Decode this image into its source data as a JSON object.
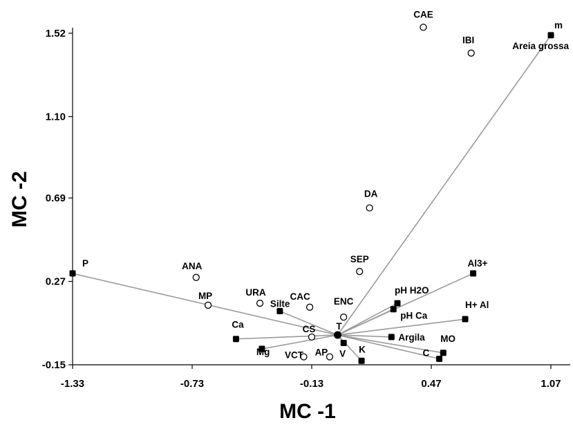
{
  "chart_data": {
    "type": "scatter",
    "title": "",
    "xlabel": "MC -1",
    "ylabel": "MC -2",
    "xlim": [
      -1.33,
      1.07
    ],
    "ylim": [
      -0.15,
      1.52
    ],
    "x_ticks": [
      "-1.33",
      "-0.73",
      "-0.13",
      "0.47",
      "1.07"
    ],
    "y_ticks": [
      "-0.15",
      "0.27",
      "0.69",
      "1.10",
      "1.52"
    ],
    "grid": false,
    "legend": "none",
    "origin": {
      "x": 0.0,
      "y": 0.0
    },
    "series": [
      {
        "marker": "filled-square",
        "vectors_from_origin": true,
        "points": [
          {
            "label": "P",
            "x": -1.33,
            "y": 0.31
          },
          {
            "label": "Ca",
            "x": -0.51,
            "y": -0.02
          },
          {
            "label": "Mg",
            "x": -0.38,
            "y": -0.07
          },
          {
            "label": "Silte",
            "x": -0.29,
            "y": 0.12
          },
          {
            "label": "V",
            "x": 0.03,
            "y": -0.04
          },
          {
            "label": "K",
            "x": 0.12,
            "y": -0.13
          },
          {
            "label": "Argila",
            "x": 0.27,
            "y": -0.01
          },
          {
            "label": "pH Ca",
            "x": 0.28,
            "y": 0.13
          },
          {
            "label": "pH H2O",
            "x": 0.3,
            "y": 0.16
          },
          {
            "label": "H+ Al",
            "x": 0.64,
            "y": 0.08
          },
          {
            "label": "C",
            "x": 0.51,
            "y": -0.12
          },
          {
            "label": "MO",
            "x": 0.53,
            "y": -0.09
          },
          {
            "label": "Al3+",
            "x": 0.68,
            "y": 0.31
          },
          {
            "label": "m",
            "x": 1.07,
            "y": 1.51
          }
        ],
        "extra_labels": [
          "Areia grossa"
        ]
      },
      {
        "marker": "open-circle",
        "vectors_from_origin": false,
        "points": [
          {
            "label": "CAE",
            "x": 0.43,
            "y": 1.55
          },
          {
            "label": "IBI",
            "x": 0.67,
            "y": 1.42
          },
          {
            "label": "DA",
            "x": 0.16,
            "y": 0.64
          },
          {
            "label": "SEP",
            "x": 0.11,
            "y": 0.32
          },
          {
            "label": "ANA",
            "x": -0.71,
            "y": 0.29
          },
          {
            "label": "MP",
            "x": -0.65,
            "y": 0.15
          },
          {
            "label": "URA",
            "x": -0.39,
            "y": 0.16
          },
          {
            "label": "CAC",
            "x": -0.14,
            "y": 0.14
          },
          {
            "label": "ENC",
            "x": 0.03,
            "y": 0.09
          },
          {
            "label": "CS",
            "x": -0.13,
            "y": -0.01
          },
          {
            "label": "T",
            "x": 0.0,
            "y": 0.0
          },
          {
            "label": "VCT",
            "x": -0.17,
            "y": -0.11
          },
          {
            "label": "AP",
            "x": -0.04,
            "y": -0.11
          }
        ]
      }
    ]
  }
}
